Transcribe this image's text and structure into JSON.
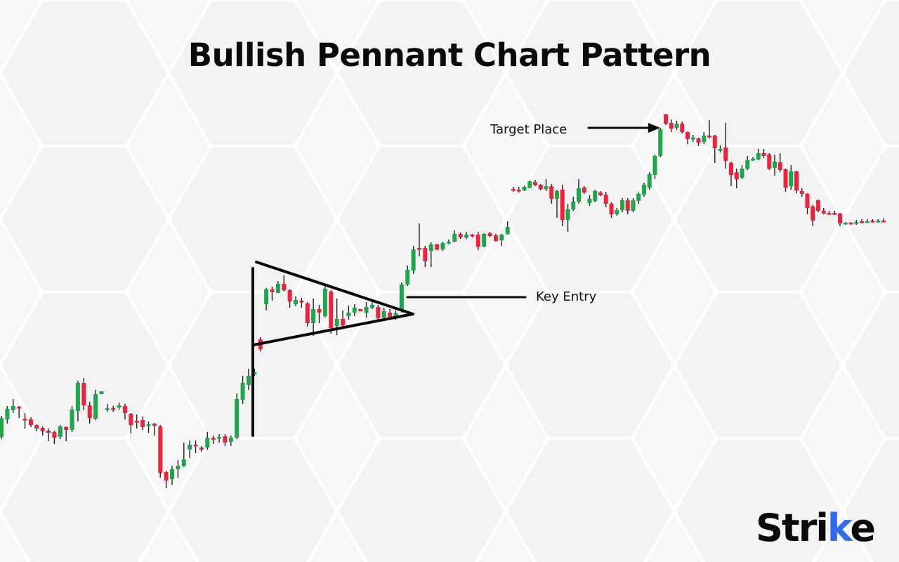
{
  "title": "Bullish Pennant Chart Pattern",
  "logo": "Strike",
  "colors": {
    "bullish": "#1fa64b",
    "bearish": "#f2213b",
    "annotation": "#0a0a0a",
    "logo_accent": "#2f6bf0",
    "background": "#f7f7f7"
  },
  "chart_data": {
    "type": "candlestick",
    "title": "Bullish Pennant Chart Pattern",
    "xlabel": "",
    "ylabel": "",
    "axes_visible": false,
    "grid": false,
    "ylim": [
      0,
      800
    ],
    "candle_format": [
      "open",
      "high",
      "low",
      "close"
    ],
    "candles": [
      [
        178,
        208,
        175,
        205
      ],
      [
        203,
        222,
        197,
        218
      ],
      [
        216,
        232,
        212,
        222
      ],
      [
        221,
        222,
        205,
        219
      ],
      [
        204,
        212,
        190,
        202
      ],
      [
        203,
        206,
        192,
        195
      ],
      [
        195,
        196,
        186,
        190
      ],
      [
        191,
        193,
        180,
        186
      ],
      [
        187,
        190,
        172,
        184
      ],
      [
        185,
        187,
        168,
        177
      ],
      [
        178,
        195,
        175,
        193
      ],
      [
        192,
        193,
        172,
        188
      ],
      [
        188,
        222,
        185,
        217
      ],
      [
        215,
        258,
        200,
        255
      ],
      [
        255,
        262,
        216,
        223
      ],
      [
        223,
        228,
        197,
        205
      ],
      [
        204,
        245,
        202,
        239
      ],
      [
        239,
        243,
        239,
        243
      ],
      [
        217,
        225,
        214,
        219
      ],
      [
        219,
        222,
        214,
        217
      ],
      [
        220,
        227,
        217,
        223
      ],
      [
        222,
        225,
        203,
        212
      ],
      [
        211,
        212,
        183,
        195
      ],
      [
        201,
        210,
        190,
        199
      ],
      [
        202,
        207,
        188,
        192
      ],
      [
        194,
        200,
        184,
        196
      ],
      [
        197,
        198,
        180,
        194
      ],
      [
        193,
        195,
        120,
        127
      ],
      [
        128,
        130,
        105,
        116
      ],
      [
        118,
        137,
        110,
        132
      ],
      [
        132,
        145,
        120,
        137
      ],
      [
        137,
        170,
        135,
        146
      ],
      [
        160,
        173,
        148,
        167
      ],
      [
        167,
        173,
        155,
        165
      ],
      [
        163,
        165,
        157,
        160
      ],
      [
        163,
        185,
        160,
        177
      ],
      [
        177,
        180,
        168,
        174
      ],
      [
        177,
        182,
        170,
        178
      ],
      [
        179,
        182,
        165,
        170
      ],
      [
        171,
        180,
        165,
        177
      ],
      [
        177,
        240,
        175,
        232
      ],
      [
        231,
        265,
        225,
        255
      ],
      [
        252,
        275,
        245,
        265
      ],
      [
        267,
        275,
        265,
        270
      ],
      [
        317,
        320,
        300,
        303
      ],
      [
        367,
        390,
        358,
        388
      ],
      [
        388,
        392,
        372,
        384
      ],
      [
        383,
        400,
        383,
        396
      ],
      [
        396,
        408,
        385,
        387
      ],
      [
        387,
        388,
        362,
        371
      ],
      [
        367,
        378,
        364,
        373
      ],
      [
        372,
        376,
        362,
        370
      ],
      [
        368,
        370,
        335,
        340
      ],
      [
        340,
        375,
        322,
        360
      ],
      [
        360,
        366,
        340,
        355
      ],
      [
        350,
        392,
        348,
        389
      ],
      [
        385,
        387,
        325,
        333
      ],
      [
        336,
        375,
        323,
        346
      ],
      [
        346,
        358,
        335,
        337
      ],
      [
        350,
        365,
        345,
        355
      ],
      [
        355,
        367,
        350,
        362
      ],
      [
        360,
        360,
        357,
        357
      ],
      [
        355,
        370,
        348,
        363
      ],
      [
        362,
        372,
        360,
        366
      ],
      [
        363,
        366,
        345,
        347
      ],
      [
        348,
        362,
        345,
        357
      ],
      [
        355,
        360,
        345,
        349
      ],
      [
        350,
        358,
        345,
        354
      ],
      [
        357,
        398,
        355,
        395
      ],
      [
        395,
        422,
        393,
        416
      ],
      [
        415,
        450,
        410,
        445
      ],
      [
        447,
        482,
        435,
        445
      ],
      [
        447,
        450,
        420,
        428
      ],
      [
        443,
        455,
        420,
        452
      ],
      [
        452,
        453,
        444,
        445
      ],
      [
        445,
        456,
        443,
        454
      ],
      [
        455,
        459,
        452,
        456
      ],
      [
        456,
        472,
        455,
        467
      ],
      [
        467,
        469,
        460,
        462
      ],
      [
        462,
        470,
        460,
        466
      ],
      [
        466,
        467,
        462,
        464
      ],
      [
        466,
        470,
        444,
        449
      ],
      [
        449,
        468,
        448,
        467
      ],
      [
        468,
        470,
        462,
        464
      ],
      [
        465,
        467,
        456,
        457
      ],
      [
        458,
        467,
        450,
        466
      ],
      [
        467,
        485,
        466,
        477
      ],
      [
        531,
        534,
        527,
        529
      ],
      [
        530,
        534,
        526,
        529
      ],
      [
        529,
        536,
        528,
        534
      ],
      [
        533,
        543,
        532,
        542
      ],
      [
        541,
        544,
        535,
        537
      ],
      [
        537,
        538,
        529,
        531
      ],
      [
        531,
        545,
        528,
        535
      ],
      [
        535,
        538,
        510,
        517
      ],
      [
        517,
        530,
        490,
        528
      ],
      [
        530,
        537,
        478,
        487
      ],
      [
        487,
        510,
        470,
        502
      ],
      [
        502,
        520,
        500,
        513
      ],
      [
        513,
        545,
        510,
        532
      ],
      [
        533,
        535,
        524,
        526
      ],
      [
        511,
        522,
        507,
        517
      ],
      [
        514,
        530,
        512,
        528
      ],
      [
        526,
        528,
        521,
        522
      ],
      [
        523,
        527,
        505,
        510
      ],
      [
        510,
        512,
        490,
        495
      ],
      [
        495,
        504,
        493,
        501
      ],
      [
        501,
        518,
        498,
        515
      ],
      [
        515,
        518,
        495,
        500
      ],
      [
        500,
        518,
        498,
        515
      ],
      [
        514,
        526,
        510,
        524
      ],
      [
        523,
        540,
        520,
        537
      ],
      [
        533,
        555,
        530,
        552
      ],
      [
        551,
        580,
        545,
        578
      ],
      [
        578,
        618,
        576,
        616
      ],
      [
        637,
        638,
        622,
        624
      ],
      [
        625,
        630,
        612,
        617
      ],
      [
        618,
        628,
        615,
        624
      ],
      [
        624,
        627,
        610,
        612
      ],
      [
        612,
        613,
        595,
        602
      ],
      [
        602,
        608,
        598,
        604
      ],
      [
        603,
        604,
        592,
        597
      ],
      [
        598,
        612,
        595,
        607
      ],
      [
        607,
        629,
        603,
        606
      ],
      [
        607,
        608,
        568,
        589
      ],
      [
        587,
        593,
        583,
        588
      ],
      [
        590,
        625,
        560,
        571
      ],
      [
        568,
        570,
        535,
        551
      ],
      [
        555,
        560,
        532,
        545
      ],
      [
        547,
        565,
        545,
        560
      ],
      [
        560,
        578,
        558,
        572
      ],
      [
        572,
        576,
        571,
        574
      ],
      [
        573,
        588,
        572,
        582
      ],
      [
        582,
        588,
        575,
        578
      ],
      [
        580,
        582,
        558,
        560
      ],
      [
        561,
        580,
        550,
        570
      ],
      [
        569,
        582,
        555,
        558
      ],
      [
        559,
        560,
        527,
        533
      ],
      [
        535,
        565,
        530,
        556
      ],
      [
        556,
        557,
        525,
        529
      ],
      [
        528,
        532,
        520,
        524
      ],
      [
        524,
        525,
        495,
        504
      ],
      [
        506,
        508,
        478,
        486
      ],
      [
        515,
        516,
        498,
        500
      ],
      [
        500,
        504,
        495,
        496
      ],
      [
        497,
        500,
        494,
        496
      ],
      [
        497,
        500,
        494,
        496
      ],
      [
        496,
        497,
        478,
        482
      ],
      [
        482,
        484,
        480,
        483
      ],
      [
        483,
        484,
        481,
        482
      ],
      [
        482,
        487,
        480,
        484
      ],
      [
        485,
        488,
        482,
        484
      ],
      [
        484,
        488,
        483,
        485
      ],
      [
        486,
        488,
        483,
        484
      ],
      [
        485,
        488,
        483,
        486
      ],
      [
        486,
        489,
        484,
        485
      ]
    ],
    "annotations": [
      {
        "type": "pennant",
        "label": ""
      },
      {
        "type": "flagpole",
        "label": ""
      },
      {
        "type": "horizontal-line",
        "label": "Key Entry"
      },
      {
        "type": "arrow",
        "label": "Target Place"
      }
    ]
  }
}
